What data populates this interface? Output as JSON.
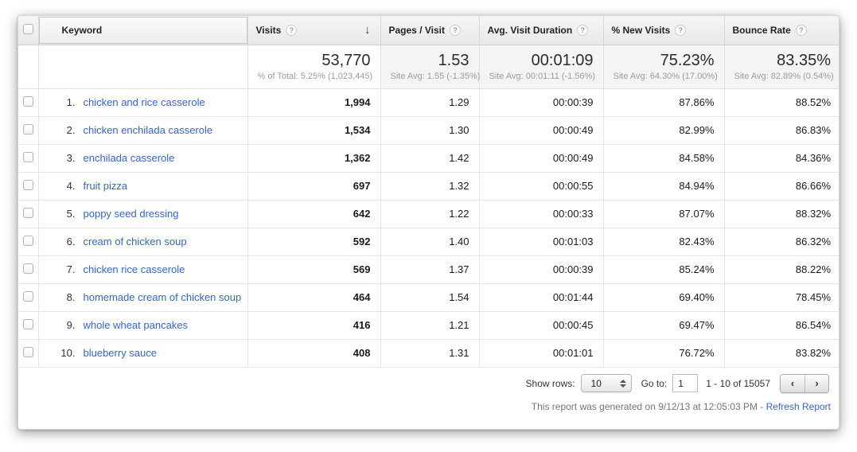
{
  "icons": {
    "help": "?",
    "sort_descending": "↓",
    "prev": "‹",
    "next": "›"
  },
  "colors": {
    "link_blue": "#3366cc",
    "header_bg": "#eeeeee",
    "summary_bg": "#f4f4f4",
    "note_gray": "#757575"
  },
  "table": {
    "columns": {
      "keyword": "Keyword",
      "visits": "Visits",
      "pages_per_visit": "Pages / Visit",
      "avg_visit_duration": "Avg. Visit Duration",
      "pct_new_visits": "% New Visits",
      "bounce_rate": "Bounce Rate"
    },
    "summary": {
      "visits_value": "53,770",
      "visits_sub": "% of Total: 5.25% (1,023,445)",
      "pages_value": "1.53",
      "pages_sub": "Site Avg: 1.55 (-1.35%)",
      "duration_value": "00:01:09",
      "duration_sub": "Site Avg: 00:01:11 (-1.56%)",
      "new_value": "75.23%",
      "new_sub": "Site Avg: 64.30% (17.00%)",
      "bounce_value": "83.35%",
      "bounce_sub": "Site Avg: 82.89% (0.54%)"
    },
    "rows": [
      {
        "rank": "1.",
        "keyword": "chicken and rice casserole",
        "visits": "1,994",
        "pages": "1.29",
        "duration": "00:00:39",
        "new": "87.86%",
        "bounce": "88.52%"
      },
      {
        "rank": "2.",
        "keyword": "chicken enchilada casserole",
        "visits": "1,534",
        "pages": "1.30",
        "duration": "00:00:49",
        "new": "82.99%",
        "bounce": "86.83%"
      },
      {
        "rank": "3.",
        "keyword": "enchilada casserole",
        "visits": "1,362",
        "pages": "1.42",
        "duration": "00:00:49",
        "new": "84.58%",
        "bounce": "84.36%"
      },
      {
        "rank": "4.",
        "keyword": "fruit pizza",
        "visits": "697",
        "pages": "1.32",
        "duration": "00:00:55",
        "new": "84.94%",
        "bounce": "86.66%"
      },
      {
        "rank": "5.",
        "keyword": "poppy seed dressing",
        "visits": "642",
        "pages": "1.22",
        "duration": "00:00:33",
        "new": "87.07%",
        "bounce": "88.32%"
      },
      {
        "rank": "6.",
        "keyword": "cream of chicken soup",
        "visits": "592",
        "pages": "1.40",
        "duration": "00:01:03",
        "new": "82.43%",
        "bounce": "86.32%"
      },
      {
        "rank": "7.",
        "keyword": "chicken rice casserole",
        "visits": "569",
        "pages": "1.37",
        "duration": "00:00:39",
        "new": "85.24%",
        "bounce": "88.22%"
      },
      {
        "rank": "8.",
        "keyword": "homemade cream of chicken soup",
        "visits": "464",
        "pages": "1.54",
        "duration": "00:01:44",
        "new": "69.40%",
        "bounce": "78.45%"
      },
      {
        "rank": "9.",
        "keyword": "whole wheat pancakes",
        "visits": "416",
        "pages": "1.21",
        "duration": "00:00:45",
        "new": "69.47%",
        "bounce": "86.54%"
      },
      {
        "rank": "10.",
        "keyword": "blueberry sauce",
        "visits": "408",
        "pages": "1.31",
        "duration": "00:01:01",
        "new": "76.72%",
        "bounce": "83.82%"
      }
    ]
  },
  "footer": {
    "show_rows_label": "Show rows:",
    "show_rows_value": "10",
    "goto_label": "Go to:",
    "goto_value": "1",
    "range_text": "1 - 10 of 15057"
  },
  "note": {
    "text": "This report was generated on 9/12/13 at 12:05:03 PM - ",
    "link_label": "Refresh Report"
  }
}
